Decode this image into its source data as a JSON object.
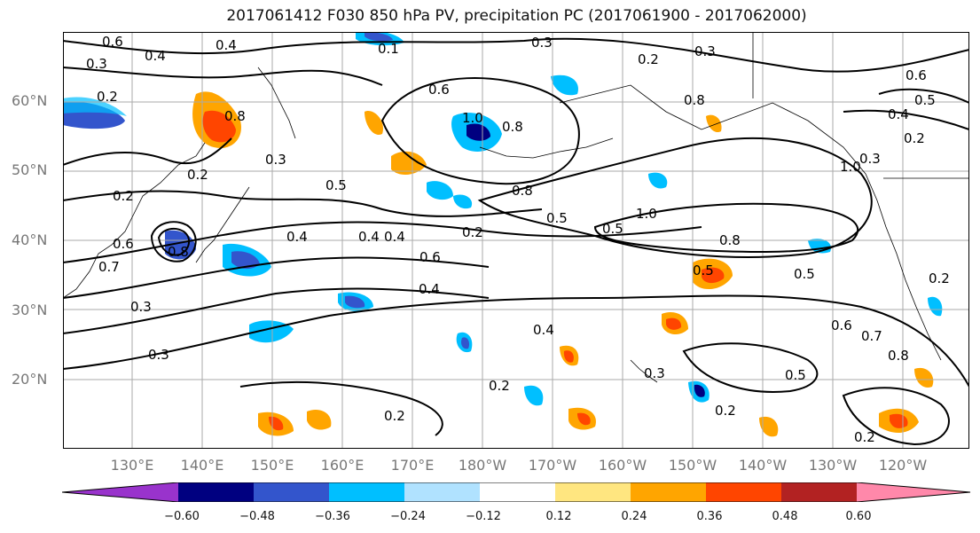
{
  "title": "2017061412 F030 850 hPa PV, precipitation PC (2017061900 - 2017062000)",
  "latitude_labels": [
    "60°N",
    "50°N",
    "40°N",
    "30°N",
    "20°N"
  ],
  "longitude_labels": [
    "130°E",
    "140°E",
    "150°E",
    "160°E",
    "170°E",
    "180°W",
    "170°W",
    "160°W",
    "150°W",
    "140°W",
    "130°W",
    "120°W"
  ],
  "contour_labels": [
    "0.6",
    "0.3",
    "0.4",
    "0.1",
    "0.3",
    "0.2",
    "0.8",
    "0.6",
    "0.2",
    "0.3",
    "0.5",
    "0.4",
    "0.2",
    "0.8",
    "0.3",
    "1.0",
    "0.8",
    "0.5",
    "0.2",
    "0.6",
    "0.4",
    "0.4",
    "0.5",
    "0.8",
    "1.0",
    "0.4",
    "1.0",
    "0.8",
    "0.6",
    "0.5",
    "0.4",
    "0.2",
    "0.3",
    "0.3",
    "0.4",
    "0.3",
    "0.6",
    "0.7",
    "0.8",
    "0.5",
    "0.2",
    "0.2",
    "0.2",
    "0.4",
    "0.5",
    "0.2",
    "0.8",
    "0.3",
    "0.2",
    "0.7",
    "0.6",
    "0.2",
    "0.5"
  ],
  "colorbar": {
    "tick_labels": [
      "−0.60",
      "−0.48",
      "−0.36",
      "−0.24",
      "−0.12",
      "0.12",
      "0.24",
      "0.36",
      "0.48",
      "0.60"
    ],
    "colors": [
      "#9933cc",
      "#000080",
      "#3355cc",
      "#00bfff",
      "#b0e2ff",
      "#ffffff",
      "#ffe680",
      "#ffa500",
      "#ff4500",
      "#b22222",
      "#ff88aa"
    ]
  }
}
